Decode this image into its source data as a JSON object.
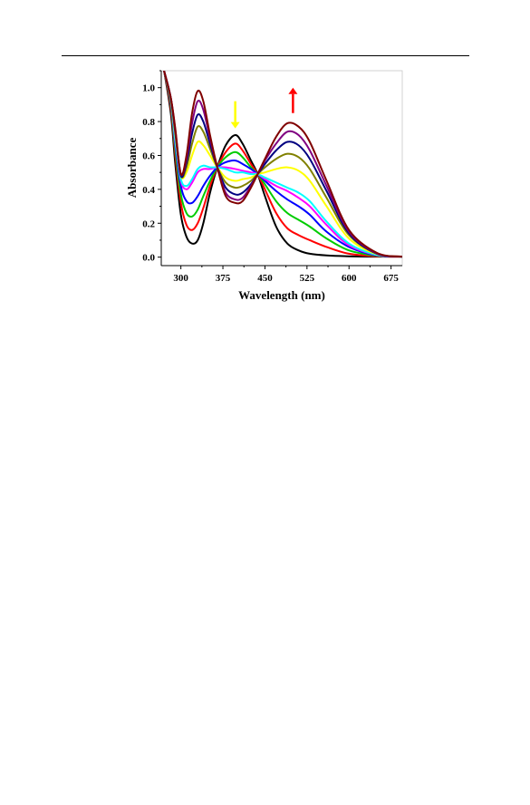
{
  "chart_data": {
    "type": "line",
    "xlabel": "Wavelength (nm)",
    "ylabel": "Absorbance",
    "xlim": [
      265,
      695
    ],
    "ylim": [
      -0.05,
      1.1
    ],
    "x_ticks": [
      300,
      375,
      450,
      525,
      600,
      675
    ],
    "x_tick_labels": [
      "300",
      "375",
      "450",
      "525",
      "600",
      "675"
    ],
    "y_ticks": [
      0.0,
      0.2,
      0.4,
      0.6,
      0.8,
      1.0
    ],
    "y_tick_labels": [
      "0.0",
      "0.2",
      "0.4",
      "0.6",
      "0.8",
      "1.0"
    ],
    "grid": false,
    "legend": "none",
    "isosbestic_points": [
      [
        365,
        0.53
      ],
      [
        437,
        0.49
      ]
    ],
    "annotations": [
      {
        "type": "arrow-down",
        "color": "#ffff00",
        "x": 397,
        "y_from": 0.92,
        "y_to": 0.76
      },
      {
        "type": "arrow-up",
        "color": "#ff0000",
        "x": 500,
        "y_from": 0.85,
        "y_to": 1.0
      }
    ],
    "series": [
      {
        "color": "#000000",
        "x": [
          270,
          282,
          290,
          300,
          310,
          320,
          330,
          340,
          352,
          365,
          380,
          397,
          410,
          425,
          437,
          450,
          470,
          490,
          510,
          530,
          560,
          600,
          650,
          695
        ],
        "y": [
          1.1,
          0.85,
          0.55,
          0.25,
          0.12,
          0.08,
          0.1,
          0.2,
          0.38,
          0.53,
          0.66,
          0.72,
          0.67,
          0.57,
          0.49,
          0.36,
          0.18,
          0.08,
          0.04,
          0.02,
          0.01,
          0.005,
          0.003,
          0.003
        ]
      },
      {
        "color": "#ff0000",
        "x": [
          270,
          282,
          290,
          300,
          310,
          320,
          330,
          340,
          352,
          365,
          380,
          397,
          410,
          425,
          437,
          450,
          470,
          490,
          510,
          530,
          560,
          600,
          650,
          695
        ],
        "y": [
          1.1,
          0.88,
          0.6,
          0.32,
          0.19,
          0.16,
          0.2,
          0.29,
          0.42,
          0.53,
          0.62,
          0.67,
          0.63,
          0.55,
          0.49,
          0.4,
          0.26,
          0.17,
          0.13,
          0.1,
          0.06,
          0.02,
          0.005,
          0.003
        ]
      },
      {
        "color": "#00cc00",
        "x": [
          270,
          282,
          290,
          300,
          310,
          320,
          330,
          340,
          352,
          365,
          380,
          397,
          410,
          425,
          437,
          450,
          470,
          490,
          510,
          530,
          560,
          600,
          650,
          695
        ],
        "y": [
          1.1,
          0.9,
          0.63,
          0.37,
          0.26,
          0.24,
          0.28,
          0.36,
          0.45,
          0.53,
          0.59,
          0.62,
          0.59,
          0.53,
          0.49,
          0.43,
          0.33,
          0.26,
          0.22,
          0.18,
          0.11,
          0.04,
          0.008,
          0.003
        ]
      },
      {
        "color": "#0000ff",
        "x": [
          270,
          282,
          290,
          300,
          310,
          320,
          330,
          340,
          352,
          365,
          380,
          397,
          410,
          425,
          437,
          450,
          470,
          490,
          510,
          530,
          560,
          600,
          650,
          695
        ],
        "y": [
          1.1,
          0.91,
          0.66,
          0.42,
          0.33,
          0.32,
          0.36,
          0.42,
          0.48,
          0.53,
          0.56,
          0.57,
          0.55,
          0.52,
          0.49,
          0.45,
          0.39,
          0.34,
          0.3,
          0.25,
          0.15,
          0.06,
          0.01,
          0.003
        ]
      },
      {
        "color": "#ff00ff",
        "x": [
          270,
          282,
          290,
          300,
          310,
          320,
          330,
          340,
          352,
          365,
          380,
          397,
          410,
          425,
          437,
          450,
          470,
          490,
          510,
          530,
          560,
          600,
          650,
          695
        ],
        "y": [
          1.1,
          0.92,
          0.68,
          0.45,
          0.4,
          0.44,
          0.5,
          0.52,
          0.52,
          0.53,
          0.53,
          0.52,
          0.51,
          0.5,
          0.49,
          0.46,
          0.42,
          0.39,
          0.35,
          0.3,
          0.19,
          0.07,
          0.012,
          0.003
        ]
      },
      {
        "color": "#00ffff",
        "x": [
          270,
          282,
          290,
          300,
          310,
          320,
          330,
          340,
          352,
          365,
          380,
          397,
          410,
          425,
          437,
          450,
          470,
          490,
          510,
          530,
          560,
          600,
          650,
          695
        ],
        "y": [
          1.1,
          0.92,
          0.69,
          0.46,
          0.42,
          0.46,
          0.52,
          0.54,
          0.53,
          0.53,
          0.52,
          0.5,
          0.5,
          0.49,
          0.49,
          0.47,
          0.44,
          0.41,
          0.38,
          0.33,
          0.21,
          0.08,
          0.013,
          0.003
        ]
      },
      {
        "color": "#ffff00",
        "x": [
          270,
          282,
          290,
          300,
          310,
          320,
          330,
          340,
          352,
          365,
          380,
          397,
          410,
          425,
          437,
          450,
          470,
          490,
          510,
          530,
          560,
          600,
          650,
          695
        ],
        "y": [
          1.1,
          0.93,
          0.72,
          0.48,
          0.5,
          0.6,
          0.68,
          0.66,
          0.6,
          0.53,
          0.47,
          0.45,
          0.46,
          0.47,
          0.49,
          0.5,
          0.52,
          0.53,
          0.51,
          0.45,
          0.3,
          0.11,
          0.017,
          0.003
        ]
      },
      {
        "color": "#808000",
        "x": [
          270,
          282,
          290,
          300,
          310,
          320,
          330,
          340,
          352,
          365,
          380,
          397,
          410,
          425,
          437,
          450,
          470,
          490,
          510,
          530,
          560,
          600,
          650,
          695
        ],
        "y": [
          1.1,
          0.93,
          0.73,
          0.48,
          0.53,
          0.67,
          0.77,
          0.74,
          0.64,
          0.53,
          0.44,
          0.41,
          0.42,
          0.45,
          0.49,
          0.53,
          0.58,
          0.61,
          0.59,
          0.52,
          0.35,
          0.13,
          0.02,
          0.003
        ]
      },
      {
        "color": "#000080",
        "x": [
          270,
          282,
          290,
          300,
          310,
          320,
          330,
          340,
          352,
          365,
          380,
          397,
          410,
          425,
          437,
          450,
          470,
          490,
          510,
          530,
          560,
          600,
          650,
          695
        ],
        "y": [
          1.1,
          0.94,
          0.74,
          0.48,
          0.56,
          0.73,
          0.84,
          0.8,
          0.67,
          0.53,
          0.41,
          0.37,
          0.38,
          0.43,
          0.49,
          0.55,
          0.63,
          0.68,
          0.66,
          0.58,
          0.39,
          0.14,
          0.02,
          0.003
        ]
      },
      {
        "color": "#800080",
        "x": [
          270,
          282,
          290,
          300,
          310,
          320,
          330,
          340,
          352,
          365,
          380,
          397,
          410,
          425,
          437,
          450,
          470,
          490,
          510,
          530,
          560,
          600,
          650,
          695
        ],
        "y": [
          1.1,
          0.94,
          0.75,
          0.49,
          0.58,
          0.79,
          0.92,
          0.87,
          0.7,
          0.53,
          0.38,
          0.34,
          0.35,
          0.42,
          0.49,
          0.57,
          0.67,
          0.74,
          0.72,
          0.63,
          0.42,
          0.15,
          0.022,
          0.003
        ]
      },
      {
        "color": "#800000",
        "x": [
          270,
          282,
          290,
          300,
          310,
          320,
          330,
          340,
          352,
          365,
          380,
          397,
          410,
          425,
          437,
          450,
          470,
          490,
          510,
          530,
          560,
          600,
          650,
          695
        ],
        "y": [
          1.1,
          0.94,
          0.76,
          0.49,
          0.6,
          0.85,
          0.98,
          0.92,
          0.72,
          0.53,
          0.36,
          0.32,
          0.33,
          0.41,
          0.49,
          0.58,
          0.71,
          0.79,
          0.77,
          0.68,
          0.45,
          0.16,
          0.025,
          0.003
        ]
      }
    ]
  }
}
